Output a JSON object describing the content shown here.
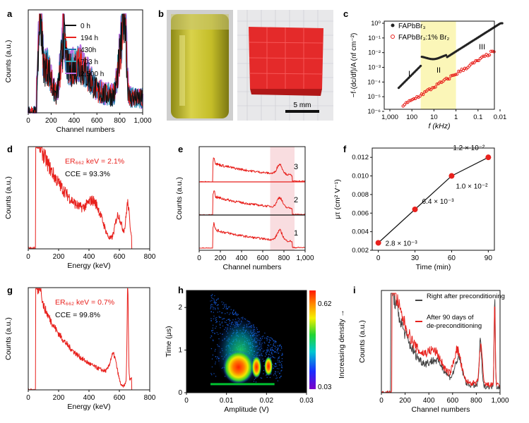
{
  "panel_labels": {
    "a": "a",
    "b": "b",
    "c": "c",
    "d": "d",
    "e": "e",
    "f": "f",
    "g": "g",
    "h": "h",
    "i": "i"
  },
  "scale_bar": "5 mm",
  "colors": {
    "red": "#e8211d",
    "black": "#111111",
    "blue": "#1f77b4",
    "teal": "#3aa6b8",
    "violet": "#b86fe0",
    "gray": "#555555",
    "shade_yellow": "#fbf6b8",
    "shade_pink": "#f9dde0"
  },
  "chart_data": [
    {
      "id": "a",
      "type": "line",
      "xlabel": "Channel numbers",
      "ylabel": "Counts (a.u.)",
      "xlim": [
        0,
        1000
      ],
      "xticks": [
        0,
        200,
        400,
        600,
        800,
        1000
      ],
      "xtick_labels": [
        "0",
        "200",
        "400",
        "600",
        "800",
        "1,000"
      ],
      "legend": [
        "0 h",
        "194 h",
        "430h",
        "703 h",
        "2,500 h"
      ],
      "series_colors": [
        "#111111",
        "#e8211d",
        "#1f77b4",
        "#3aa6b8",
        "#b86fe0"
      ]
    },
    {
      "id": "c",
      "type": "scatter",
      "xlabel": "f (kHz)",
      "ylabel": "−f·(dc/df)/A (nf cm⁻²)",
      "xticks": [
        1000,
        100,
        10,
        1,
        0.1,
        0.01
      ],
      "xtick_labels": [
        "1,000",
        "100",
        "10",
        "1",
        "0.1",
        "0.01"
      ],
      "yticks": [
        -6,
        -5,
        -4,
        -3,
        -2,
        -1,
        0
      ],
      "ytick_labels": [
        "10⁻⁶",
        "10⁻⁵",
        "10⁻⁴",
        "10⁻³",
        "10⁻²",
        "10⁻¹",
        "10⁰"
      ],
      "legend": [
        "FAPbBr₃",
        "FAPbBr₃:1% Br₂"
      ],
      "regions": [
        "I",
        "II",
        "III"
      ]
    },
    {
      "id": "d",
      "type": "line",
      "xlabel": "Energy (keV)",
      "ylabel": "Counts (a.u.)",
      "xlim": [
        0,
        800
      ],
      "xticks": [
        0,
        200,
        400,
        600,
        800
      ],
      "xtick_labels": [
        "0",
        "200",
        "400",
        "600",
        "800"
      ],
      "annotations": {
        "er": "ER₆₆₂ keV = 2.1%",
        "cce": "CCE = 93.3%"
      }
    },
    {
      "id": "e",
      "type": "line",
      "xlabel": "Channel numbers",
      "ylabel": "Counts (a.u.)",
      "xlim": [
        0,
        1000
      ],
      "xticks": [
        0,
        200,
        400,
        600,
        800,
        1000
      ],
      "xtick_labels": [
        "0",
        "200",
        "400",
        "600",
        "800",
        "1,000"
      ],
      "trace_labels": [
        "1",
        "2",
        "3"
      ]
    },
    {
      "id": "f",
      "type": "line",
      "xlabel": "Time (min)",
      "ylabel": "μτ (cm² V⁻¹)",
      "x": [
        0,
        30,
        60,
        90
      ],
      "y": [
        0.0028,
        0.0064,
        0.01,
        0.012
      ],
      "xlim": [
        -5,
        95
      ],
      "ylim": [
        0.002,
        0.013
      ],
      "xticks": [
        0,
        30,
        60,
        90
      ],
      "xtick_labels": [
        "0",
        "30",
        "60",
        "90"
      ],
      "yticks": [
        0.002,
        0.004,
        0.006,
        0.008,
        0.01,
        0.012
      ],
      "ytick_labels": [
        "0.002",
        "0.004",
        "0.006",
        "0.008",
        "0.010",
        "0.012"
      ],
      "point_labels": [
        "2.8 × 10⁻³",
        "6.4 × 10⁻³",
        "1.0 × 10⁻²",
        "1.2 × 10⁻²"
      ]
    },
    {
      "id": "g",
      "type": "line",
      "xlabel": "Energy (keV)",
      "ylabel": "Counts (a.u.)",
      "xlim": [
        0,
        800
      ],
      "xticks": [
        0,
        200,
        400,
        600,
        800
      ],
      "xtick_labels": [
        "0",
        "200",
        "400",
        "600",
        "800"
      ],
      "annotations": {
        "er": "ER₆₆₂ keV = 0.7%",
        "cce": "CCE = 99.8%"
      }
    },
    {
      "id": "h",
      "type": "heatmap",
      "xlabel": "Amplitude (V)",
      "ylabel": "Time (μs)",
      "xlim": [
        0,
        0.03
      ],
      "xticks": [
        0,
        0.01,
        0.02,
        0.03
      ],
      "xtick_labels": [
        "0",
        "0.01",
        "0.02",
        "0.03"
      ],
      "ylim": [
        0,
        2.4
      ],
      "yticks": [
        0,
        1,
        2
      ],
      "ytick_labels": [
        "0",
        "1",
        "2"
      ],
      "colorbar": {
        "min": "0.03",
        "max": "0.62",
        "label": "Increasing density →"
      }
    },
    {
      "id": "i",
      "type": "line",
      "xlabel": "Channel numbers",
      "ylabel": "Counts (a.u.)",
      "xlim": [
        0,
        1000
      ],
      "xticks": [
        0,
        200,
        400,
        600,
        800,
        1000
      ],
      "xtick_labels": [
        "0",
        "200",
        "400",
        "600",
        "800",
        "1,000"
      ],
      "legend": [
        "Right after preconditioning",
        "After 90 days of de-preconditioning"
      ]
    }
  ]
}
